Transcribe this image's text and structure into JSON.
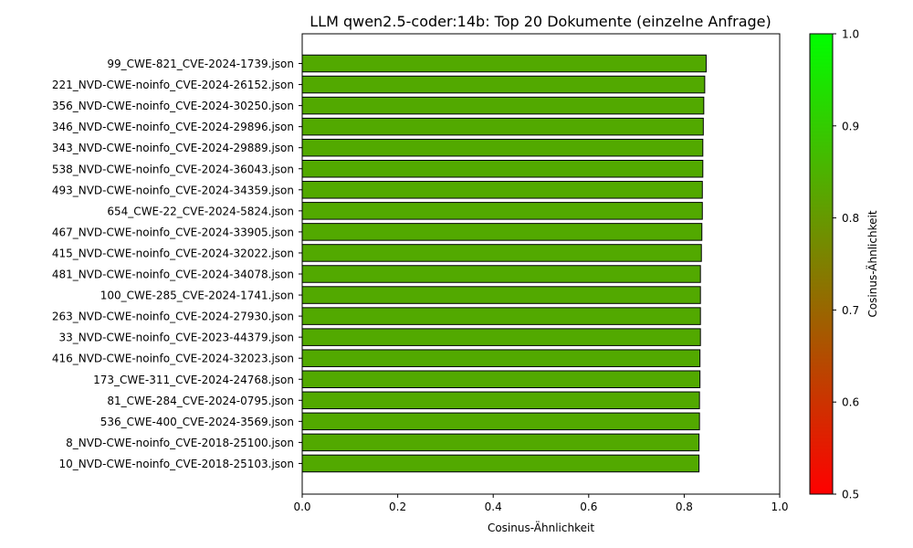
{
  "chart_data": {
    "type": "bar",
    "orientation": "horizontal",
    "title": "LLM qwen2.5-coder:14b: Top 20 Dokumente (einzelne Anfrage)",
    "xlabel": "Cosinus-Ähnlichkeit",
    "xlim": [
      0,
      1
    ],
    "xticks": [
      "0.0",
      "0.2",
      "0.4",
      "0.6",
      "0.8",
      "1.0"
    ],
    "grid": false,
    "bar_color": "#52a900",
    "bar_edge_color": "#000000",
    "categories": [
      "99_CWE-821_CVE-2024-1739.json",
      "221_NVD-CWE-noinfo_CVE-2024-26152.json",
      "356_NVD-CWE-noinfo_CVE-2024-30250.json",
      "346_NVD-CWE-noinfo_CVE-2024-29896.json",
      "343_NVD-CWE-noinfo_CVE-2024-29889.json",
      "538_NVD-CWE-noinfo_CVE-2024-36043.json",
      "493_NVD-CWE-noinfo_CVE-2024-34359.json",
      "654_CWE-22_CVE-2024-5824.json",
      "467_NVD-CWE-noinfo_CVE-2024-33905.json",
      "415_NVD-CWE-noinfo_CVE-2024-32022.json",
      "481_NVD-CWE-noinfo_CVE-2024-34078.json",
      "100_CWE-285_CVE-2024-1741.json",
      "263_NVD-CWE-noinfo_CVE-2024-27930.json",
      "33_NVD-CWE-noinfo_CVE-2023-44379.json",
      "416_NVD-CWE-noinfo_CVE-2024-32023.json",
      "173_CWE-311_CVE-2024-24768.json",
      "81_CWE-284_CVE-2024-0795.json",
      "536_CWE-400_CVE-2024-3569.json",
      "8_NVD-CWE-noinfo_CVE-2018-25100.json",
      "10_NVD-CWE-noinfo_CVE-2018-25103.json"
    ],
    "values": [
      0.846,
      0.843,
      0.841,
      0.84,
      0.839,
      0.839,
      0.838,
      0.838,
      0.837,
      0.836,
      0.834,
      0.834,
      0.834,
      0.834,
      0.833,
      0.833,
      0.832,
      0.832,
      0.831,
      0.831
    ],
    "colorbar": {
      "label": "Cosinus-Ähnlichkeit",
      "range": [
        0.5,
        1.0
      ],
      "ticks": [
        "0.5",
        "0.6",
        "0.7",
        "0.8",
        "0.9",
        "1.0"
      ],
      "color_low": "#ff0000",
      "color_high": "#00ff00"
    }
  }
}
